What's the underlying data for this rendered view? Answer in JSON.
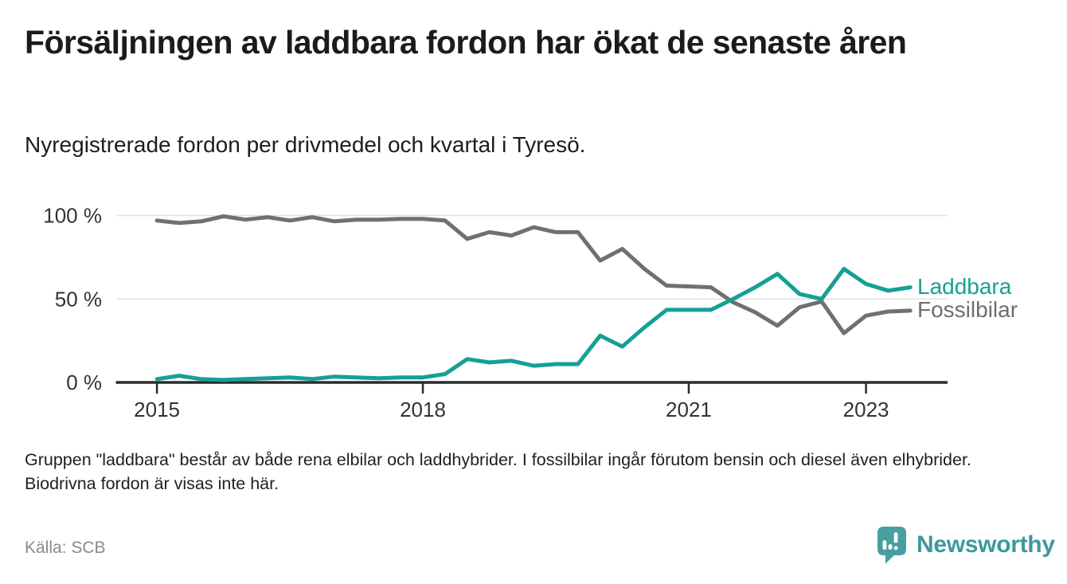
{
  "header": {
    "title": "Försäljningen av laddbara fordon har ökat de senaste åren",
    "subtitle": "Nyregistrerade fordon per drivmedel och kvartal i Tyresö."
  },
  "chart_data": {
    "type": "line",
    "unit": "%",
    "periods": [
      "2015K1",
      "2015K2",
      "2015K3",
      "2015K4",
      "2016K1",
      "2016K2",
      "2016K3",
      "2016K4",
      "2017K1",
      "2017K2",
      "2017K3",
      "2017K4",
      "2018K1",
      "2018K2",
      "2018K3",
      "2018K4",
      "2019K1",
      "2019K2",
      "2019K3",
      "2019K4",
      "2020K1",
      "2020K2",
      "2020K3",
      "2020K4",
      "2021K1",
      "2021K2",
      "2021K3",
      "2021K4",
      "2022K1",
      "2022K2",
      "2022K3",
      "2022K4",
      "2023K1",
      "2023K2",
      "2023K3"
    ],
    "x": [
      2015.0,
      2015.25,
      2015.5,
      2015.75,
      2016.0,
      2016.25,
      2016.5,
      2016.75,
      2017.0,
      2017.25,
      2017.5,
      2017.75,
      2018.0,
      2018.25,
      2018.5,
      2018.75,
      2019.0,
      2019.25,
      2019.5,
      2019.75,
      2020.0,
      2020.25,
      2020.5,
      2020.75,
      2021.0,
      2021.25,
      2021.5,
      2021.75,
      2022.0,
      2022.25,
      2022.5,
      2022.75,
      2023.0,
      2023.25,
      2023.5
    ],
    "series": [
      {
        "name": "Laddbara",
        "color": "#16a094",
        "label_color": "#16a094",
        "values": [
          2,
          4,
          2,
          1.5,
          2,
          2.5,
          3,
          2,
          3.5,
          3,
          2.5,
          3,
          3,
          5,
          14,
          12,
          13,
          10,
          11,
          11,
          28,
          21.5,
          33,
          43.5,
          43.5,
          43.5,
          50,
          57,
          65,
          53,
          50,
          68,
          59,
          55,
          57
        ]
      },
      {
        "name": "Fossilbilar",
        "color": "#707070",
        "label_color": "#6e6e6e",
        "values": [
          97,
          95.5,
          96.5,
          99.5,
          97.5,
          99,
          97,
          99,
          96.5,
          97.5,
          97.5,
          98,
          98,
          97,
          86,
          90,
          88,
          93,
          90,
          90,
          73,
          80,
          68,
          58,
          57.5,
          57,
          48,
          42,
          34,
          45,
          48.5,
          29.5,
          40,
          42.5,
          43
        ]
      }
    ],
    "ylim": [
      0,
      100
    ],
    "xlim": [
      2014.55,
      2023.92
    ],
    "yticks": [
      {
        "value": 0,
        "label": "0 %"
      },
      {
        "value": 50,
        "label": "50 %"
      },
      {
        "value": 100,
        "label": "100 %"
      }
    ],
    "xticks": [
      {
        "value": 2015,
        "label": "2015"
      },
      {
        "value": 2018,
        "label": "2018"
      },
      {
        "value": 2021,
        "label": "2021"
      },
      {
        "value": 2023,
        "label": "2023"
      }
    ],
    "grid": "horizontal",
    "legend_position": "line-end-right"
  },
  "footer": {
    "note": "Gruppen \"laddbara\" består av både rena elbilar och laddhybrider. I fossilbilar ingår förutom bensin och diesel även elhybrider. Biodrivna fordon är visas inte här.",
    "source": "Källa: SCB",
    "brand": "Newsworthy"
  },
  "icons": {
    "brand_logo": "bar-chart-speech-pin-icon"
  },
  "colors": {
    "accent_teal": "#16a094",
    "neutral_gray": "#707070",
    "axis": "#2b2b2b",
    "gridline": "#e0e0e0",
    "tick_label": "#333333",
    "text_dark": "#1b1b1b",
    "text_muted": "#8a8a8a",
    "brand_teal": "#3c999b",
    "logo_fill": "#489ea0"
  }
}
